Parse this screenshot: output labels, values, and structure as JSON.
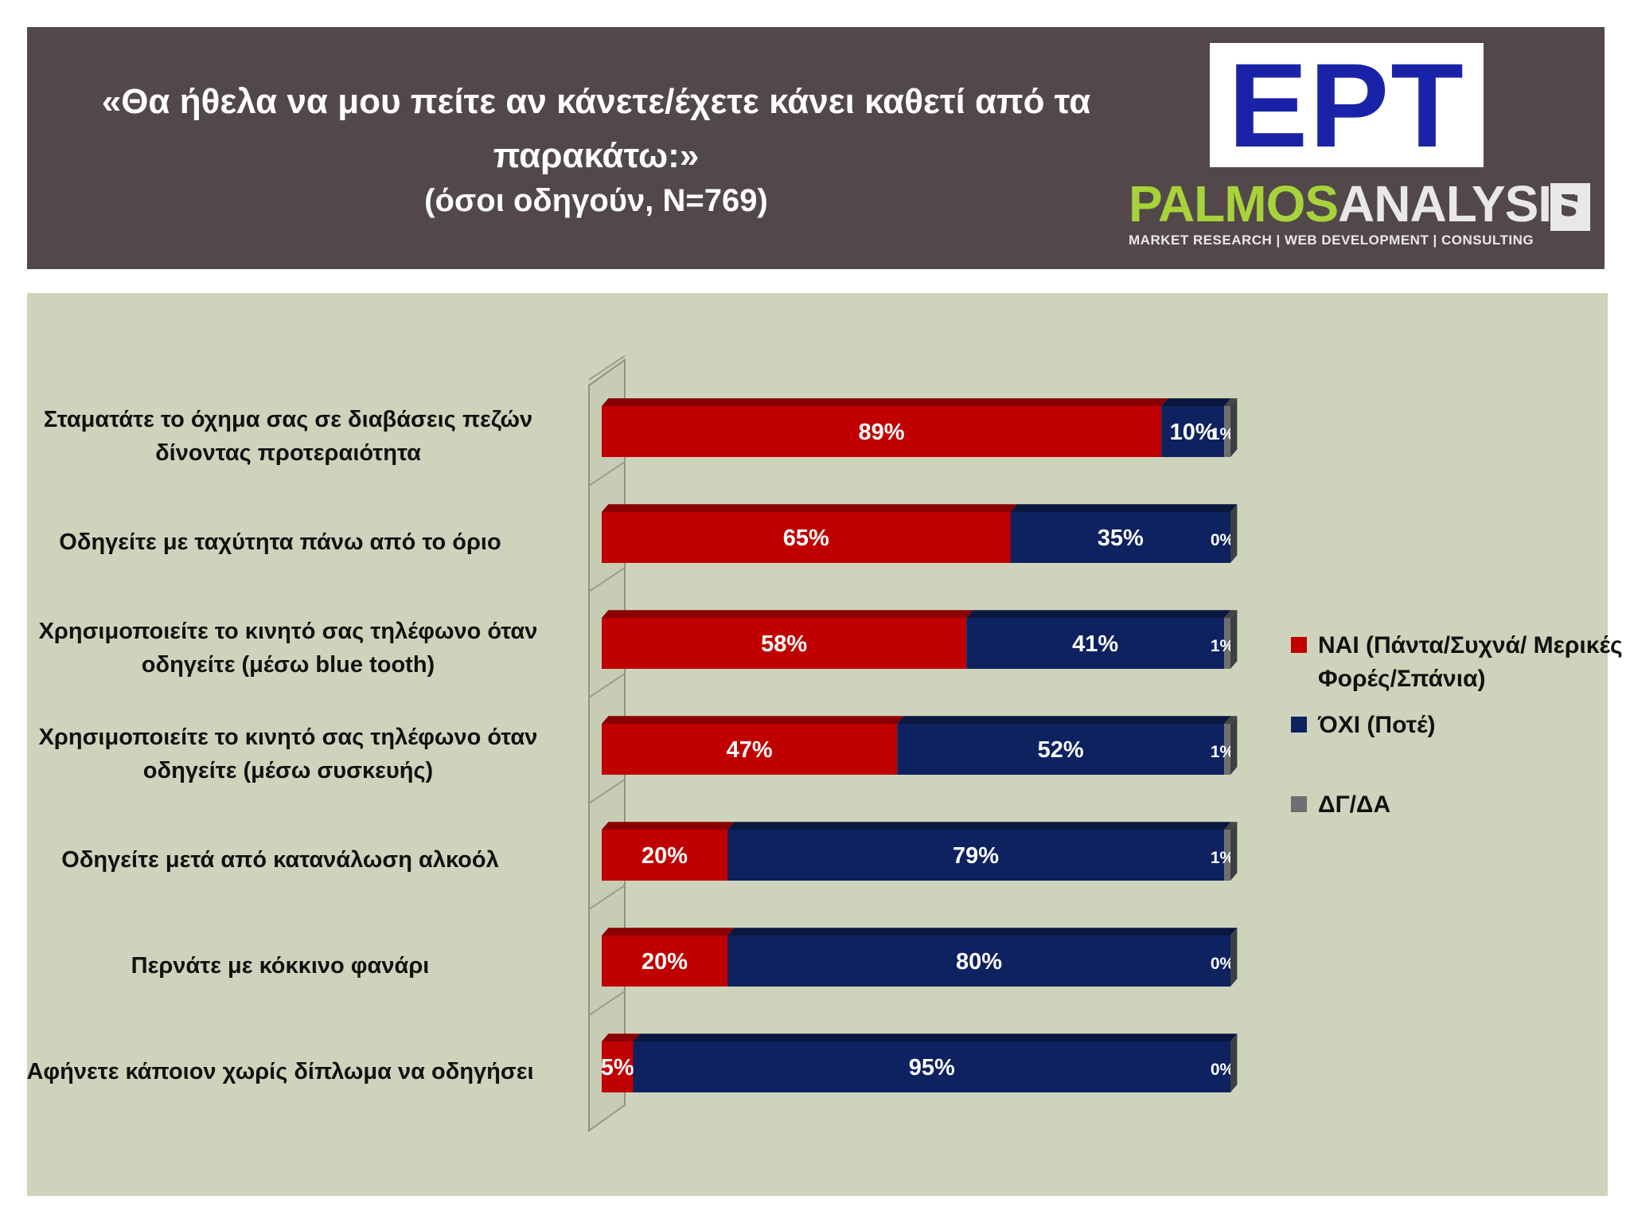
{
  "header": {
    "title": "«Θα ήθελα να μου πείτε αν κάνετε/έχετε κάνει καθετί από τα παρακάτω:»",
    "subtitle": "(όσοι οδηγούν, N=769)",
    "logo_ert": "EPT",
    "logo_palmos_a": "PALMOS",
    "logo_palmos_b": "ANALYSIS",
    "logo_palmos_tag": "MARKET RESEARCH | WEB DEVELOPMENT | CONSULTING"
  },
  "colors": {
    "yes": "#c00000",
    "no": "#0e2260",
    "dk": "#6f6f6f"
  },
  "chart_data": {
    "type": "bar",
    "orientation": "horizontal",
    "stacked": true,
    "categories": [
      "Σταματάτε το όχημα σας σε διαβάσεις πεζών δίνοντας προτεραιότητα",
      "Οδηγείτε με ταχύτητα πάνω από το όριο",
      "Χρησιμοποιείτε το κινητό σας τηλέφωνο όταν οδηγείτε (μέσω blue tooth)",
      "Χρησιμοποιείτε το κινητό σας τηλέφωνο όταν οδηγείτε (μέσω συσκευής)",
      "Οδηγείτε μετά από κατανάλωση αλκοόλ",
      "Περνάτε με κόκκινο φανάρι",
      "Αφήνετε κάποιον χωρίς δίπλωμα να οδηγήσει"
    ],
    "series": [
      {
        "name": "ΝΑΙ (Πάντα/Συχνά/ Μερικές Φορές/Σπάνια)",
        "values": [
          89,
          65,
          58,
          47,
          20,
          20,
          5
        ],
        "labels": [
          "89%",
          "65%",
          "58%",
          "47%",
          "20%",
          "20%",
          "5%"
        ]
      },
      {
        "name": "ΌΧΙ (Ποτέ)",
        "values": [
          10,
          35,
          41,
          52,
          79,
          80,
          95
        ],
        "labels": [
          "10%",
          "35%",
          "41%",
          "52%",
          "79%",
          "80%",
          "95%"
        ]
      },
      {
        "name": "ΔΓ/ΔΑ",
        "values": [
          1,
          0,
          1,
          1,
          1,
          0,
          0
        ],
        "labels": [
          "1%",
          "0%",
          "1%",
          "1%",
          "1%",
          "0%",
          "0%"
        ]
      }
    ],
    "xlim": [
      0,
      100
    ],
    "legend": "right"
  }
}
